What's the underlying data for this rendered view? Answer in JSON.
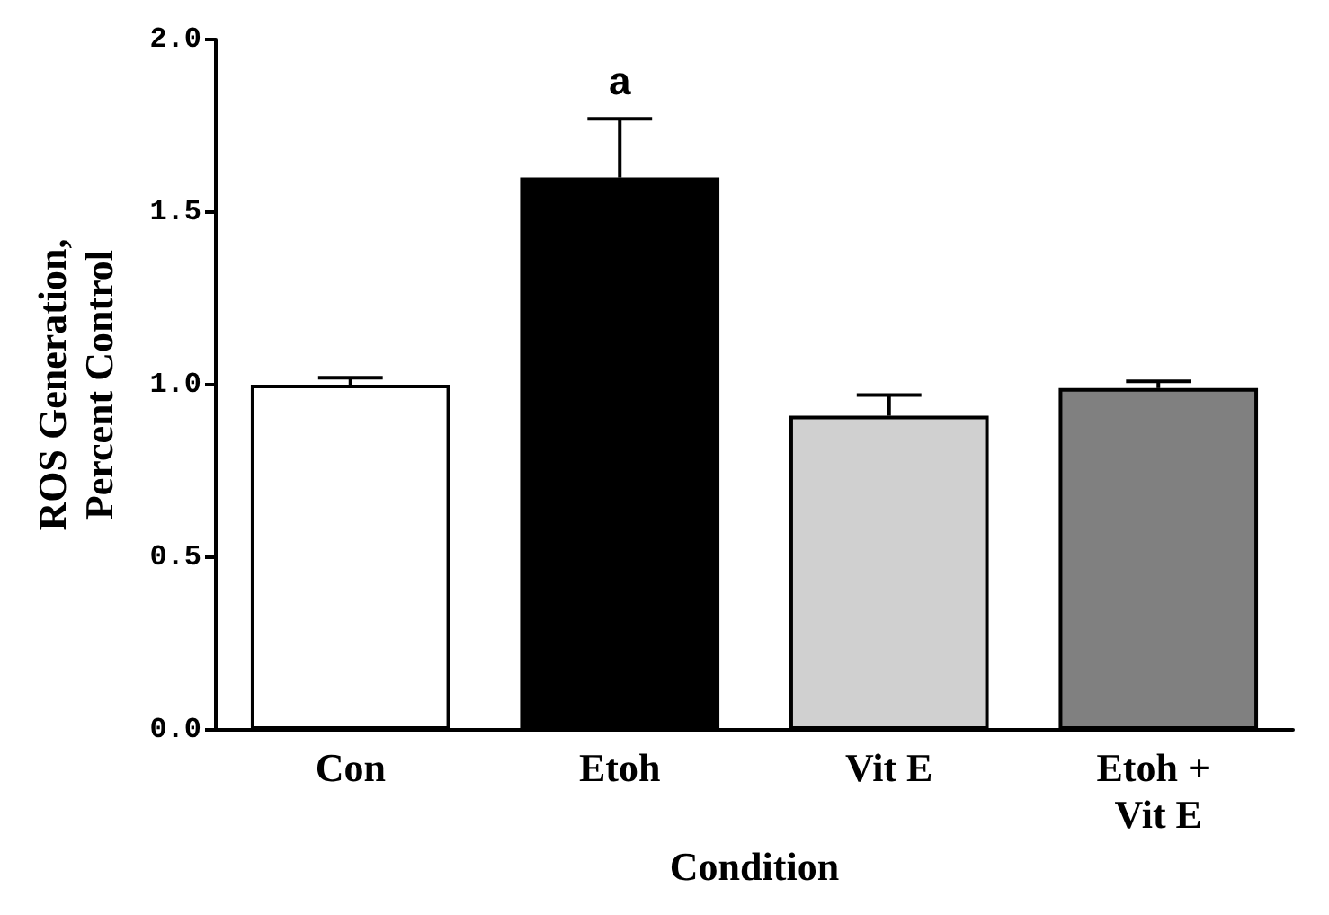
{
  "chart_data": {
    "type": "bar",
    "xlabel": "Condition",
    "ylabel": "ROS Generation,\nPercent Control",
    "categories": [
      "Con",
      "Etoh",
      "Vit E",
      "Etoh + Vit E"
    ],
    "values": [
      1.0,
      1.6,
      0.91,
      0.99
    ],
    "colors": [
      "#ffffff",
      "#000000",
      "#d0d0d0",
      "#808080"
    ],
    "errors": [
      [
        1.0,
        1.02
      ],
      [
        1.6,
        1.77
      ],
      [
        0.91,
        0.97
      ],
      [
        0.99,
        1.01
      ]
    ],
    "ylim": [
      0,
      2.0
    ],
    "yticks": [
      {
        "value": 0,
        "label": "0.0"
      },
      {
        "value": 0.5,
        "label": "0.5"
      },
      {
        "value": 1,
        "label": "1.0"
      },
      {
        "value": 1.5,
        "label": "1.5"
      },
      {
        "value": 2,
        "label": "2.0"
      }
    ],
    "annotations": [
      "a"
    ],
    "grid": false
  }
}
